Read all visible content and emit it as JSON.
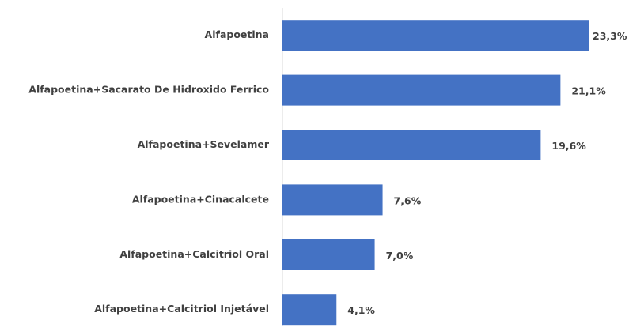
{
  "chart_data": {
    "type": "hbar",
    "categories": [
      "Alfapoetina",
      "Alfapoetina+Sacarato De Hidroxido Ferrico",
      "Alfapoetina+Sevelamer",
      "Alfapoetina+Cinacalcete",
      "Alfapoetina+Calcitriol Oral",
      "Alfapoetina+Calcitriol Injetável"
    ],
    "values": [
      23.3,
      21.1,
      19.6,
      7.6,
      7.0,
      4.1
    ],
    "value_labels": [
      "23,3%",
      "21,1%",
      "19,6%",
      "7,6%",
      "7,0%",
      "4,1%"
    ],
    "color": "#4472c4"
  }
}
